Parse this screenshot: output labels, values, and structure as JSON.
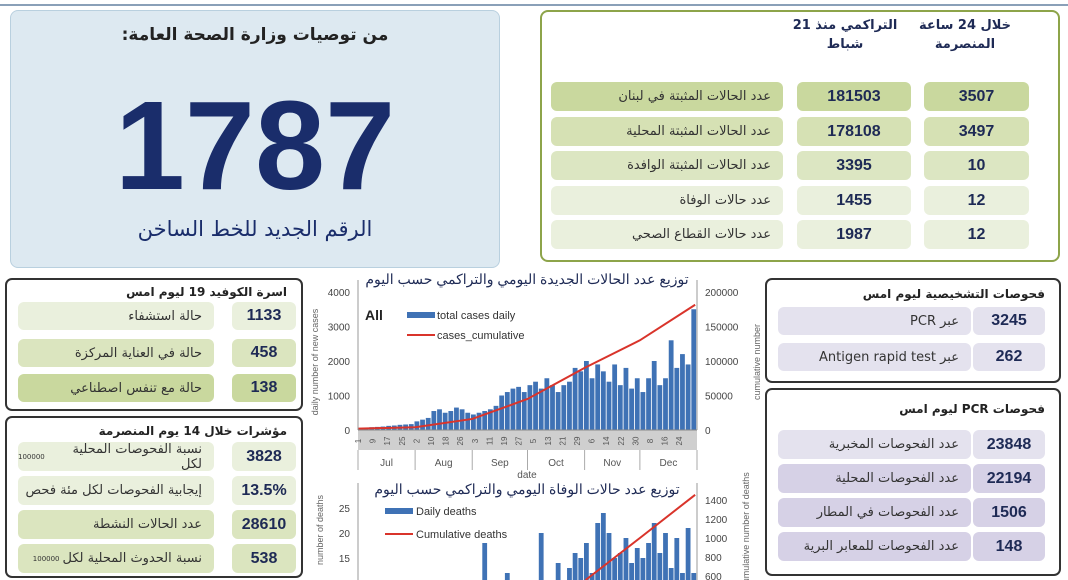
{
  "hotline": {
    "title": "من توصيات وزارة الصحة العامة:",
    "number": "1787",
    "subtitle": "الرقم الجديد للخط الساخن"
  },
  "summary": {
    "col_24h": "خلال 24 ساعة المنصرمة",
    "col_cumulative": "التراكمي منذ 21 شباط",
    "rows": [
      {
        "label": "عدد الحالات المثبتة في لبنان",
        "cumulative": "181503",
        "last24": "3507"
      },
      {
        "label": "عدد الحالات المثبتة المحلية",
        "cumulative": "178108",
        "last24": "3497"
      },
      {
        "label": "عدد الحالات المثبتة الوافدة",
        "cumulative": "3395",
        "last24": "10"
      },
      {
        "label": "عدد حالات الوفاة",
        "cumulative": "1455",
        "last24": "12"
      },
      {
        "label": "عدد حالات القطاع الصحي",
        "cumulative": "1987",
        "last24": "12"
      }
    ]
  },
  "beds": {
    "title": "اسرة الكوفيد 19 ليوم امس",
    "rows": [
      {
        "label": "حالة استشفاء",
        "value": "1133"
      },
      {
        "label": "حالة في العناية المركزة",
        "value": "458"
      },
      {
        "label": "حالة مع تنفس اصطناعي",
        "value": "138"
      }
    ]
  },
  "indicators": {
    "title": "مؤشرات خلال 14 يوم المنصرمة",
    "rows": [
      {
        "label": "نسبة الفحوصات المحلية لكل",
        "small": "100000",
        "value": "3828"
      },
      {
        "label": "إيجابية الفحوصات لكل مئة فحص",
        "small": "",
        "value": "13.5%"
      },
      {
        "label": "عدد الحالات النشطة",
        "small": "",
        "value": "28610"
      },
      {
        "label": "نسبة الحدوث المحلية لكل",
        "small": "100000",
        "value": "538"
      }
    ]
  },
  "diagnostic": {
    "title": "فحوصات التشخيصية ليوم امس",
    "rows": [
      {
        "label": "عبر PCR",
        "value": "3245"
      },
      {
        "label": "عبر Antigen rapid test",
        "value": "262"
      }
    ]
  },
  "pcr": {
    "title": "فحوصات PCR ليوم امس",
    "rows": [
      {
        "label": "عدد الفحوصات المخبرية",
        "value": "23848"
      },
      {
        "label": "عدد الفحوصات المحلية",
        "value": "22194"
      },
      {
        "label": "عدد الفحوصات في المطار",
        "value": "1506"
      },
      {
        "label": "عدد الفحوصات للمعابر البرية",
        "value": "148"
      }
    ]
  },
  "colors": {
    "navy": "#1a2d6b",
    "green_border": "#8da44a",
    "bar": "#3f72b5",
    "line": "#d9342b"
  },
  "chart_data": [
    {
      "type": "bar",
      "title": "توزيع عدد الحالات الجديدة اليومي والتراكمي حسب اليوم",
      "annotation": "All",
      "xlabel": "date",
      "ylabel": "daily number of new cases",
      "y2label": "cumulative number",
      "ylim": [
        0,
        4000
      ],
      "y2lim": [
        0,
        200000
      ],
      "yticks": [
        "0",
        "1000",
        "2000",
        "3000",
        "4000"
      ],
      "y2ticks": [
        "0",
        "50000",
        "100000",
        "150000",
        "200000"
      ],
      "day_ticks": [
        "1",
        "9",
        "17",
        "25",
        "2",
        "10",
        "18",
        "26",
        "3",
        "11",
        "19",
        "27",
        "5",
        "13",
        "21",
        "29",
        "6",
        "14",
        "22",
        "30",
        "8",
        "16",
        "24"
      ],
      "months": [
        "Jul",
        "Aug",
        "Sep",
        "Oct",
        "Nov",
        "Dec"
      ],
      "legend": [
        "total cases daily",
        "cases_cumulative"
      ],
      "sample_every_days": 3,
      "daily": [
        50,
        60,
        80,
        90,
        100,
        120,
        130,
        150,
        160,
        170,
        250,
        300,
        350,
        550,
        600,
        500,
        550,
        650,
        600,
        500,
        450,
        500,
        550,
        600,
        700,
        1000,
        1100,
        1200,
        1250,
        1100,
        1300,
        1400,
        1200,
        1500,
        1300,
        1100,
        1300,
        1400,
        1800,
        1700,
        2000,
        1500,
        1900,
        1700,
        1400,
        1900,
        1300,
        1800,
        1200,
        1500,
        1100,
        1500,
        2000,
        1300,
        1500,
        2600,
        1800,
        2200,
        1900,
        3500
      ],
      "cumulative_monthly": {
        "dates": [
          "Jul 1",
          "Aug 1",
          "Sep 1",
          "Oct 1",
          "Nov 1",
          "Dec 1",
          "Dec 31"
        ],
        "values": [
          2000,
          4000,
          16000,
          45000,
          90000,
          130000,
          181503
        ]
      },
      "grid": false,
      "legend_position": "top-left"
    },
    {
      "type": "bar",
      "title": "توزيع عدد حالات الوفاة اليومي والتراكمي حسب اليوم",
      "ylabel": "number of deaths",
      "y2label": "cumulative number of deaths",
      "yticks": [
        "15",
        "20",
        "25"
      ],
      "y2ticks": [
        "600",
        "800",
        "1000",
        "1200",
        "1400"
      ],
      "legend": [
        "Daily deaths",
        "Cumulative deaths"
      ],
      "sample_every_days": 3,
      "daily": [
        0,
        0,
        1,
        0,
        1,
        1,
        1,
        2,
        1,
        2,
        2,
        3,
        3,
        4,
        3,
        5,
        4,
        6,
        5,
        4,
        5,
        6,
        18,
        6,
        7,
        5,
        12,
        8,
        6,
        10,
        8,
        9,
        20,
        7,
        10,
        14,
        9,
        13,
        16,
        15,
        18,
        12,
        22,
        24,
        20,
        15,
        16,
        19,
        14,
        17,
        15,
        18,
        22,
        16,
        20,
        13,
        19,
        12,
        21,
        12
      ],
      "cumulative_monthly": {
        "dates": [
          "Jul 1",
          "Aug 1",
          "Sep 1",
          "Oct 1",
          "Nov 1",
          "Dec 1",
          "Dec 31"
        ],
        "values": [
          36,
          60,
          120,
          290,
          550,
          1000,
          1455
        ]
      },
      "grid": false,
      "legend_position": "top-left"
    }
  ]
}
